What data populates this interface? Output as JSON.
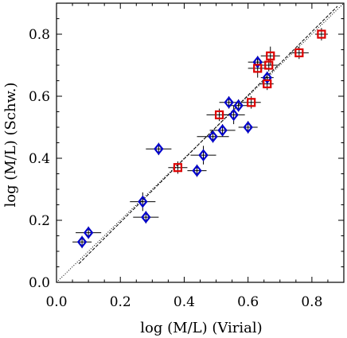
{
  "chart_data": {
    "type": "scatter",
    "title": "",
    "xlabel": "log (M/L)  (Virial)",
    "ylabel": "log (M/L)  (Schw.)",
    "xlim": [
      0.0,
      0.9
    ],
    "ylim": [
      0.0,
      0.9
    ],
    "x_ticks": [
      "0.0",
      "0.2",
      "0.4",
      "0.6",
      "0.8"
    ],
    "y_ticks": [
      "0.0",
      "0.2",
      "0.4",
      "0.6",
      "0.8"
    ],
    "grid": false,
    "colors": {
      "diamonds": "#0000cc",
      "squares": "#dd0000",
      "lines": "#000000"
    },
    "series": [
      {
        "marker": "diamond",
        "points": [
          {
            "x": 0.08,
            "y": 0.13,
            "xerr": 0.03,
            "yerr": 0.02
          },
          {
            "x": 0.1,
            "y": 0.16,
            "xerr": 0.04,
            "yerr": 0.02
          },
          {
            "x": 0.27,
            "y": 0.26,
            "xerr": 0.04,
            "yerr": 0.03
          },
          {
            "x": 0.28,
            "y": 0.21,
            "xerr": 0.04,
            "yerr": 0.02
          },
          {
            "x": 0.32,
            "y": 0.43,
            "xerr": 0.04,
            "yerr": 0.02
          },
          {
            "x": 0.44,
            "y": 0.36,
            "xerr": 0.03,
            "yerr": 0.02
          },
          {
            "x": 0.46,
            "y": 0.41,
            "xerr": 0.04,
            "yerr": 0.03
          },
          {
            "x": 0.49,
            "y": 0.47,
            "xerr": 0.05,
            "yerr": 0.02
          },
          {
            "x": 0.52,
            "y": 0.49,
            "xerr": 0.04,
            "yerr": 0.02
          },
          {
            "x": 0.54,
            "y": 0.58,
            "xerr": 0.03,
            "yerr": 0.02
          },
          {
            "x": 0.555,
            "y": 0.54,
            "xerr": 0.035,
            "yerr": 0.03
          },
          {
            "x": 0.57,
            "y": 0.57,
            "xerr": 0.03,
            "yerr": 0.02
          },
          {
            "x": 0.6,
            "y": 0.5,
            "xerr": 0.03,
            "yerr": 0.02
          },
          {
            "x": 0.63,
            "y": 0.71,
            "xerr": 0.03,
            "yerr": 0.02
          },
          {
            "x": 0.66,
            "y": 0.66,
            "xerr": 0.02,
            "yerr": 0.02
          }
        ]
      },
      {
        "marker": "square",
        "points": [
          {
            "x": 0.38,
            "y": 0.37,
            "xerr": 0.03,
            "yerr": 0.02
          },
          {
            "x": 0.51,
            "y": 0.54,
            "xerr": 0.04,
            "yerr": 0.02
          },
          {
            "x": 0.61,
            "y": 0.58,
            "xerr": 0.03,
            "yerr": 0.02
          },
          {
            "x": 0.63,
            "y": 0.69,
            "xerr": 0.03,
            "yerr": 0.03
          },
          {
            "x": 0.66,
            "y": 0.64,
            "xerr": 0.02,
            "yerr": 0.02
          },
          {
            "x": 0.665,
            "y": 0.7,
            "xerr": 0.03,
            "yerr": 0.02
          },
          {
            "x": 0.67,
            "y": 0.73,
            "xerr": 0.03,
            "yerr": 0.03
          },
          {
            "x": 0.76,
            "y": 0.74,
            "xerr": 0.03,
            "yerr": 0.02
          },
          {
            "x": 0.83,
            "y": 0.8,
            "xerr": 0.02,
            "yerr": 0.02
          }
        ]
      }
    ],
    "lines": [
      {
        "style": "dotted",
        "from": [
          0.0,
          0.0
        ],
        "to": [
          0.9,
          0.9
        ]
      },
      {
        "style": "dashed",
        "from": [
          0.07,
          0.06
        ],
        "to": [
          0.88,
          0.89
        ]
      }
    ]
  }
}
